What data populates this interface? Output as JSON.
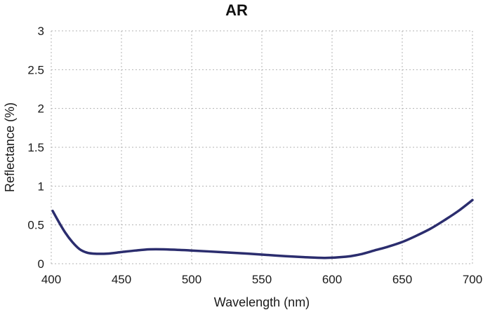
{
  "chart_data": {
    "type": "line",
    "title": "AR",
    "xlabel": "Wavelength (nm)",
    "ylabel": "Reflectance (%)",
    "xlim": [
      400,
      700
    ],
    "ylim": [
      0,
      3
    ],
    "xticks": [
      "400",
      "450",
      "500",
      "550",
      "600",
      "650",
      "700"
    ],
    "yticks": [
      "0",
      "0.5",
      "1",
      "1.5",
      "2",
      "2.5",
      "3"
    ],
    "grid": true,
    "line_color": "#2b2d6e",
    "series": [
      {
        "x": [
          401,
          405,
          410,
          415,
          420,
          425,
          430,
          440,
          450,
          460,
          470,
          480,
          500,
          520,
          540,
          560,
          580,
          595,
          610,
          620,
          630,
          640,
          650,
          660,
          670,
          680,
          690,
          700
        ],
        "values": [
          0.68,
          0.55,
          0.4,
          0.28,
          0.19,
          0.145,
          0.13,
          0.13,
          0.15,
          0.17,
          0.185,
          0.185,
          0.17,
          0.15,
          0.13,
          0.105,
          0.085,
          0.075,
          0.09,
          0.12,
          0.17,
          0.22,
          0.28,
          0.36,
          0.45,
          0.56,
          0.68,
          0.82
        ]
      }
    ]
  }
}
